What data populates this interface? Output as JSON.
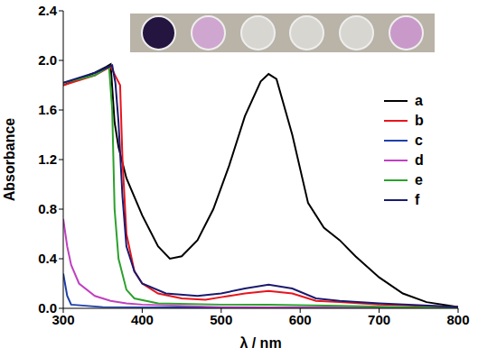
{
  "chart_data": {
    "type": "line",
    "x_label": "λ / nm",
    "y_label": "Absorbance",
    "xlim": [
      300,
      800
    ],
    "xticks": [
      300,
      400,
      500,
      600,
      700,
      800
    ],
    "ylim": [
      0,
      2.4
    ],
    "yticks": [
      {
        "value": 0,
        "label": "0.0"
      },
      {
        "value": 0.4,
        "label": "0.4"
      },
      {
        "value": 0.8,
        "label": "0.8"
      },
      {
        "value": 1.2,
        "label": "1.2"
      },
      {
        "value": 1.6,
        "label": "1.6"
      },
      {
        "value": 2.0,
        "label": "2.0"
      },
      {
        "value": 2.4,
        "label": "2.4"
      }
    ],
    "legend": "right",
    "series": [
      {
        "name": "a",
        "color": "#000000",
        "x": [
          300,
          320,
          340,
          355,
          360,
          365,
          370,
          380,
          400,
          420,
          435,
          450,
          470,
          490,
          510,
          530,
          550,
          560,
          570,
          590,
          610,
          630,
          650,
          670,
          700,
          730,
          760,
          800
        ],
        "values": [
          1.8,
          1.85,
          1.9,
          1.95,
          1.97,
          1.5,
          1.3,
          1.05,
          0.75,
          0.5,
          0.4,
          0.42,
          0.55,
          0.8,
          1.15,
          1.55,
          1.83,
          1.89,
          1.85,
          1.4,
          0.85,
          0.65,
          0.55,
          0.42,
          0.25,
          0.12,
          0.05,
          0.01
        ]
      },
      {
        "name": "b",
        "color": "#e8141c",
        "x": [
          300,
          340,
          360,
          368,
          372,
          375,
          380,
          390,
          400,
          420,
          450,
          480,
          500,
          530,
          560,
          590,
          620,
          650,
          700,
          800
        ],
        "values": [
          1.8,
          1.88,
          1.95,
          1.85,
          1.8,
          1.2,
          0.6,
          0.3,
          0.2,
          0.12,
          0.08,
          0.07,
          0.09,
          0.12,
          0.14,
          0.12,
          0.06,
          0.05,
          0.03,
          0.01
        ]
      },
      {
        "name": "c",
        "color": "#1f3faa",
        "x": [
          300,
          305,
          310,
          350,
          800
        ],
        "values": [
          0.28,
          0.1,
          0.03,
          0.01,
          0
        ]
      },
      {
        "name": "d",
        "color": "#c040c0",
        "x": [
          300,
          305,
          310,
          320,
          340,
          360,
          380,
          400,
          500,
          800
        ],
        "values": [
          0.72,
          0.5,
          0.35,
          0.2,
          0.1,
          0.06,
          0.04,
          0.03,
          0.01,
          0
        ]
      },
      {
        "name": "e",
        "color": "#2ca02c",
        "x": [
          300,
          340,
          358,
          362,
          365,
          370,
          380,
          390,
          420,
          500,
          560,
          650,
          800
        ],
        "values": [
          1.82,
          1.88,
          1.95,
          1.6,
          0.8,
          0.4,
          0.15,
          0.08,
          0.04,
          0.03,
          0.03,
          0.02,
          0
        ]
      },
      {
        "name": "f",
        "color": "#1a1a6e",
        "x": [
          300,
          340,
          362,
          366,
          370,
          375,
          380,
          390,
          400,
          430,
          470,
          500,
          530,
          560,
          590,
          620,
          650,
          700,
          800
        ],
        "values": [
          1.82,
          1.9,
          1.96,
          1.82,
          1.5,
          0.9,
          0.5,
          0.3,
          0.2,
          0.12,
          0.1,
          0.12,
          0.16,
          0.19,
          0.16,
          0.08,
          0.06,
          0.04,
          0.01
        ]
      }
    ]
  }
}
